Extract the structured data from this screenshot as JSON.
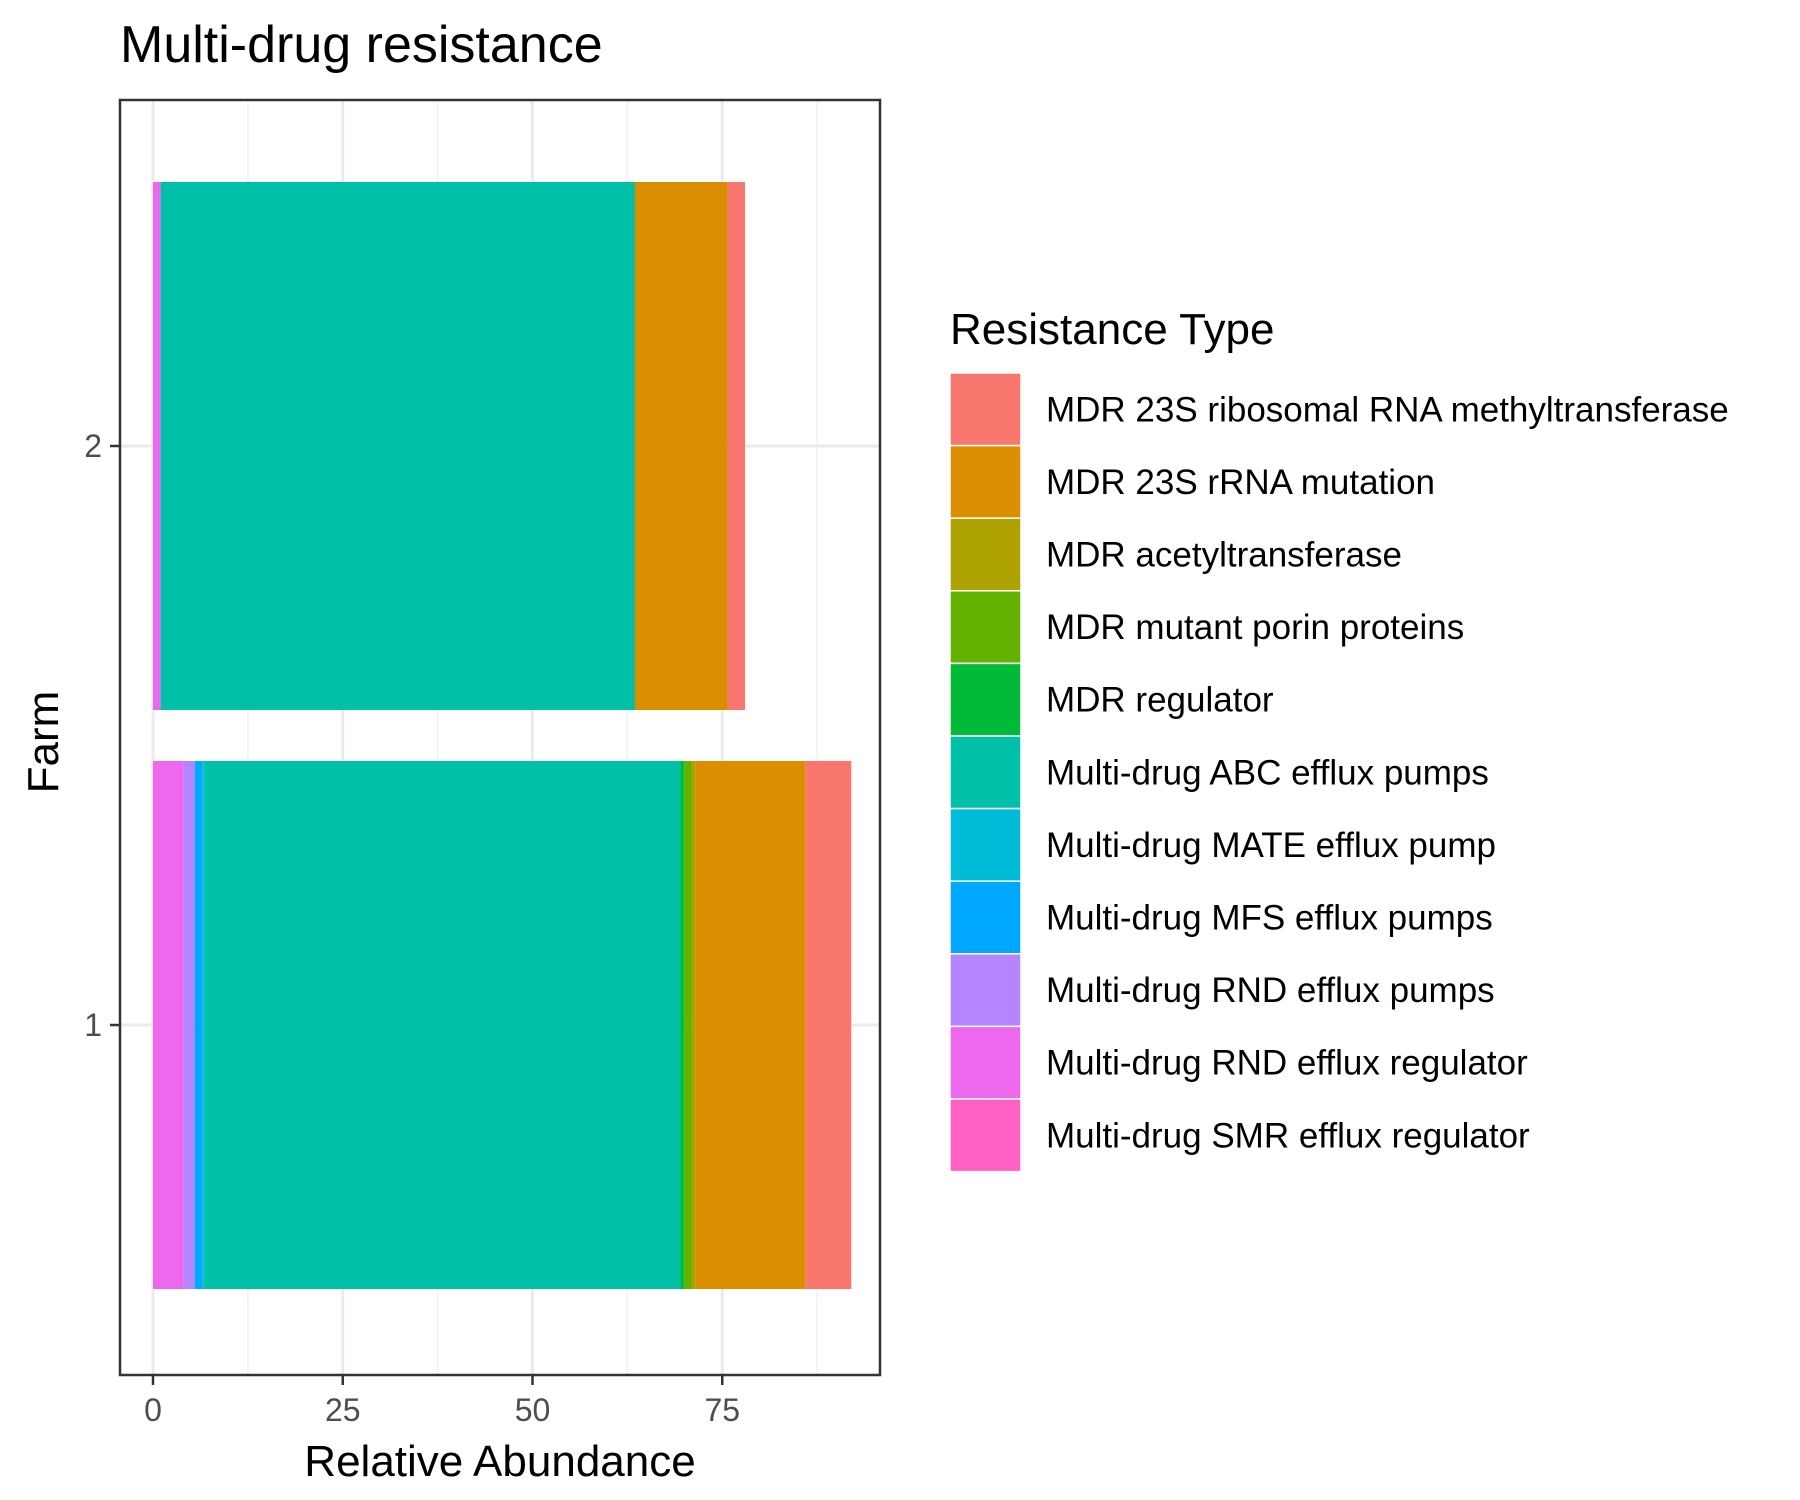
{
  "chart_data": {
    "type": "bar",
    "orientation": "horizontal",
    "stacked": true,
    "title": "Multi-drug resistance",
    "xlabel": "Relative Abundance",
    "ylabel": "Farm",
    "xlim": [
      -9,
      191
    ],
    "x_ticks": [
      0,
      25,
      50,
      75
    ],
    "categories": [
      "1",
      "2"
    ],
    "grid": true,
    "legend_title": "Resistance Type",
    "legend_position": "right",
    "series": [
      {
        "name": "Multi-drug SMR efflux regulator",
        "color": "#FF61C3",
        "values": [
          0,
          0
        ]
      },
      {
        "name": "Multi-drug RND efflux regulator",
        "color": "#ED68ED",
        "values": [
          4,
          1
        ]
      },
      {
        "name": "Multi-drug RND efflux pumps",
        "color": "#B385FF",
        "values": [
          1.5,
          0
        ]
      },
      {
        "name": "Multi-drug MFS efflux pumps",
        "color": "#00A9FF",
        "values": [
          1,
          0
        ]
      },
      {
        "name": "Multi-drug MATE efflux pump",
        "color": "#00BCD8",
        "values": [
          0.3,
          0
        ]
      },
      {
        "name": "Multi-drug ABC efflux pumps",
        "color": "#00C1A7",
        "values": [
          62.7,
          62.5
        ]
      },
      {
        "name": "MDR regulator",
        "color": "#00BA38",
        "values": [
          0.5,
          0
        ]
      },
      {
        "name": "MDR mutant porin proteins",
        "color": "#64B200",
        "values": [
          1,
          0
        ]
      },
      {
        "name": "MDR acetyltransferase",
        "color": "#AEA200",
        "values": [
          0.5,
          0
        ]
      },
      {
        "name": "MDR 23S rRNA mutation",
        "color": "#DB8E00",
        "values": [
          14.5,
          12.2
        ]
      },
      {
        "name": "MDR 23S ribosomal RNA methyltransferase",
        "color": "#F8766D",
        "values": [
          6,
          2.3
        ]
      }
    ],
    "legend_order": [
      "MDR 23S ribosomal RNA methyltransferase",
      "MDR 23S rRNA mutation",
      "MDR acetyltransferase",
      "MDR mutant porin proteins",
      "MDR regulator",
      "Multi-drug ABC efflux pumps",
      "Multi-drug MATE efflux pump",
      "Multi-drug MFS efflux pumps",
      "Multi-drug RND efflux pumps",
      "Multi-drug RND efflux regulator",
      "Multi-drug SMR efflux regulator"
    ]
  }
}
